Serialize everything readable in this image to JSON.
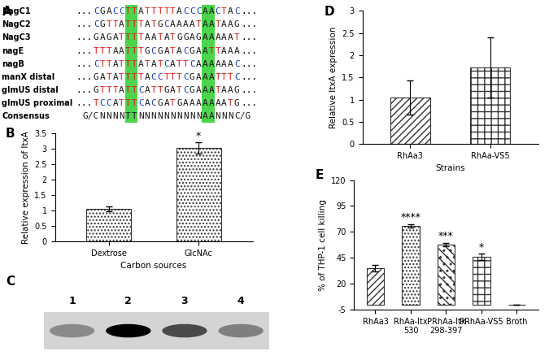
{
  "alignment": {
    "label": "A",
    "prefix": "...",
    "suffix": "...",
    "rows": [
      {
        "name": "NagC1",
        "sequence": "CGACCTTATTTTTACCCAACTAC"
      },
      {
        "name": "NagC2",
        "sequence": "CGTTATTTATGCAAAATAATAAG"
      },
      {
        "name": "NagC3",
        "sequence": "GAGATTTTAATATGGAGAAAAAT"
      },
      {
        "name": "nagE",
        "sequence": "TTTAATTTGCGATACGAATTAAA"
      },
      {
        "name": "nagB",
        "sequence": "CTTATTTATATCATTCAAAAAAC"
      },
      {
        "name": "manX distal",
        "sequence": "GATATTTTACCTTTCGAAATTTC"
      },
      {
        "name": "glmUS distal",
        "sequence": "GTTTATTCATTGATCGAAATAAG"
      },
      {
        "name": "glmUS proximal",
        "sequence": "TCCATTTCACGATGAAAAAAATG"
      }
    ],
    "consensus": {
      "name": "Consensus",
      "tokens": [
        "G/C",
        "N",
        "N",
        "N",
        "N",
        "T",
        "T",
        "N",
        "N",
        "N",
        "N",
        "N",
        "N",
        "N",
        "N",
        "N",
        "N",
        "A",
        "A",
        "N",
        "N",
        "N",
        "C/G"
      ]
    }
  },
  "chart_data": [
    {
      "label": "B",
      "type": "bar",
      "categories": [
        "Dextrose",
        "GlcNAc"
      ],
      "values": [
        1.05,
        3.02
      ],
      "errors": [
        0.08,
        0.18
      ],
      "significance": [
        null,
        "*"
      ],
      "xlabel": "Carbon sources",
      "ylabel": "Relative expression of ltxA",
      "ylim": [
        0,
        3.5
      ],
      "yticks": [
        0,
        0.5,
        1,
        1.5,
        2,
        2.5,
        3,
        3.5
      ]
    },
    {
      "label": "D",
      "type": "bar",
      "categories": [
        "RhAa3",
        "RhAa-VS5"
      ],
      "values": [
        1.05,
        1.73
      ],
      "errors": [
        0.38,
        0.68
      ],
      "significance": [
        null,
        null
      ],
      "xlabel": "Strains",
      "ylabel": "Relative ltxA expression",
      "ylim": [
        0,
        3
      ],
      "yticks": [
        0,
        0.5,
        1,
        1.5,
        2,
        2.5,
        3
      ]
    },
    {
      "label": "E",
      "type": "bar",
      "categories": [
        "RhAa3",
        "RhAa-ltx 530",
        "PRhAa-ltx 298-397",
        "PRhAa-VS5",
        "Broth"
      ],
      "values": [
        35,
        76,
        58,
        46,
        0
      ],
      "errors": [
        3,
        1.5,
        1.5,
        3,
        0
      ],
      "significance": [
        null,
        "****",
        "***",
        "*",
        null
      ],
      "ylabel": "% of THP-1 cell killing",
      "ylim": [
        -5,
        120
      ],
      "yticks": [
        -5,
        20,
        45,
        70,
        95,
        120
      ]
    }
  ],
  "blot": {
    "label": "C",
    "lanes": [
      "1",
      "2",
      "3",
      "4"
    ],
    "band_intensity": [
      0.35,
      1.0,
      0.65,
      0.4
    ]
  }
}
